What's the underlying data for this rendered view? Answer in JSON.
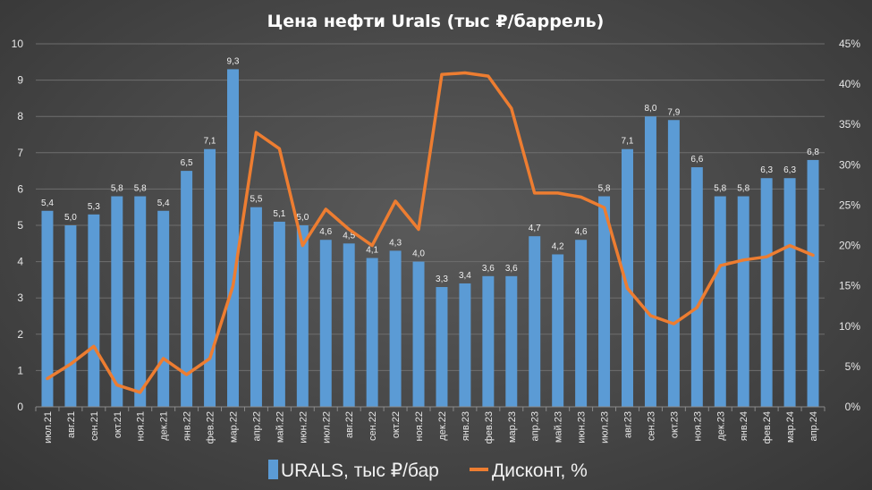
{
  "chart_data": {
    "type": "bar+line",
    "title": "Цена нефти Urals (тыс ₽/баррель)",
    "categories": [
      "июл.21",
      "авг.21",
      "сен.21",
      "окт.21",
      "ноя.21",
      "дек.21",
      "янв.22",
      "фев.22",
      "мар.22",
      "апр.22",
      "май.22",
      "июн.22",
      "июл.22",
      "авг.22",
      "сен.22",
      "окт.22",
      "ноя.22",
      "дек.22",
      "янв.23",
      "фев.23",
      "мар.23",
      "апр.23",
      "май.23",
      "июн.23",
      "июл.23",
      "авг.23",
      "сен.23",
      "окт.23",
      "ноя.23",
      "дек.23",
      "янв.24",
      "фев.24",
      "мар.24",
      "апр.24"
    ],
    "series": [
      {
        "name": "URALS, тыс ₽/бар",
        "type": "bar",
        "axis": "left",
        "color": "#5b9bd5",
        "values": [
          5.4,
          5.0,
          5.3,
          5.8,
          5.8,
          5.4,
          6.5,
          7.1,
          9.3,
          5.5,
          5.1,
          5.0,
          4.6,
          4.5,
          4.1,
          4.3,
          4.0,
          3.3,
          3.4,
          3.6,
          3.6,
          4.7,
          4.2,
          4.6,
          5.8,
          7.1,
          8.0,
          7.9,
          6.6,
          5.8,
          5.8,
          6.3,
          6.3,
          6.8
        ],
        "labels": [
          "5,4",
          "5,0",
          "5,3",
          "5,8",
          "5,8",
          "5,4",
          "6,5",
          "7,1",
          "9,3",
          "5,5",
          "5,1",
          "5,0",
          "4,6",
          "4,5",
          "4,1",
          "4,3",
          "4,0",
          "3,3",
          "3,4",
          "3,6",
          "3,6",
          "4,7",
          "4,2",
          "4,6",
          "5,8",
          "7,1",
          "8,0",
          "7,9",
          "6,6",
          "5,8",
          "5,8",
          "6,3",
          "6,3",
          "6,8"
        ]
      },
      {
        "name": "Дисконт, %",
        "type": "line",
        "axis": "right",
        "color": "#ed7d31",
        "values": [
          3.5,
          5.3,
          7.5,
          2.7,
          1.8,
          6.0,
          4.0,
          6.0,
          15.0,
          34.0,
          32.0,
          20.0,
          24.5,
          22.0,
          20.0,
          25.5,
          22.0,
          41.2,
          41.4,
          41.0,
          37.0,
          26.5,
          26.5,
          26.0,
          24.7,
          14.7,
          11.3,
          10.3,
          12.3,
          17.5,
          18.2,
          18.6,
          20.0,
          18.8
        ]
      }
    ],
    "y_left": {
      "min": 0,
      "max": 10,
      "ticks": [
        "0",
        "1",
        "2",
        "3",
        "4",
        "5",
        "6",
        "7",
        "8",
        "9",
        "10"
      ]
    },
    "y_right": {
      "min": 0,
      "max": 45,
      "ticks": [
        "0%",
        "5%",
        "10%",
        "15%",
        "20%",
        "25%",
        "30%",
        "35%",
        "40%",
        "45%"
      ]
    },
    "grid": true,
    "legend_position": "bottom"
  }
}
